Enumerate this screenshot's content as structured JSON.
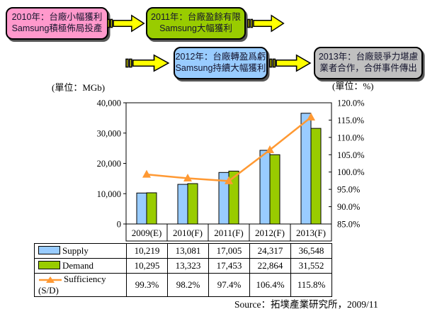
{
  "flow": {
    "arrow_color": "#FFFF00",
    "boxes": [
      {
        "line1": "2010年：台廠小幅獲利",
        "line2": "Samsung積極佈局投產",
        "color": "#FF99CC"
      },
      {
        "line1": "2011年：台廠盈餘有限",
        "line2": "Samsung大幅獲利",
        "color": "#99CC00"
      },
      {
        "line1": "2012年：台廠轉盈爲虧",
        "line2": "Samsung持續大幅獲利",
        "color": "#99CCFF"
      },
      {
        "line1": "2013年：台廠競爭力堪慮",
        "line2": "業者合作，合併事件傳出",
        "color": "#C0C0C0"
      }
    ]
  },
  "chart_data": {
    "type": "bar+line",
    "categories": [
      "2009(E)",
      "2010(F)",
      "2011(F)",
      "2012(F)",
      "2013(F)"
    ],
    "series": [
      {
        "name": "Supply",
        "type": "bar",
        "axis": "left",
        "color": "#99CCFF",
        "values": [
          10219,
          13081,
          17005,
          24317,
          36548
        ]
      },
      {
        "name": "Demand",
        "type": "bar",
        "axis": "left",
        "color": "#99CC00",
        "values": [
          10295,
          13323,
          17453,
          22864,
          31552
        ]
      },
      {
        "name": "Sufficiency (S/D)",
        "type": "line",
        "axis": "right",
        "color": "#FF9933",
        "values": [
          99.3,
          98.2,
          97.4,
          106.4,
          115.8
        ]
      }
    ],
    "left_axis": {
      "unit_label": "(單位：MGb)",
      "min": 0,
      "max": 40000,
      "ticks": [
        "40,000",
        "30,000",
        "20,000",
        "10,000",
        "0"
      ]
    },
    "right_axis": {
      "unit_label": "(單位：%)",
      "min": 85,
      "max": 120,
      "ticks": [
        "120.0%",
        "115.0%",
        "110.0%",
        "105.0%",
        "100.0%",
        "95.0%",
        "90.0%",
        "85.0%"
      ]
    },
    "grid": "off",
    "legend_position": "table-left"
  },
  "table": {
    "rows": [
      {
        "label": "Supply",
        "values": [
          "10,219",
          "13,081",
          "17,005",
          "24,317",
          "36,548"
        ]
      },
      {
        "label": "Demand",
        "values": [
          "10,295",
          "13,323",
          "17,453",
          "22,864",
          "31,552"
        ]
      },
      {
        "label": "Sufficiency (S/D)",
        "values": [
          "99.3%",
          "98.2%",
          "97.4%",
          "106.4%",
          "115.8%"
        ]
      }
    ]
  },
  "source": "Source：拓墣產業研究所，2009/11"
}
